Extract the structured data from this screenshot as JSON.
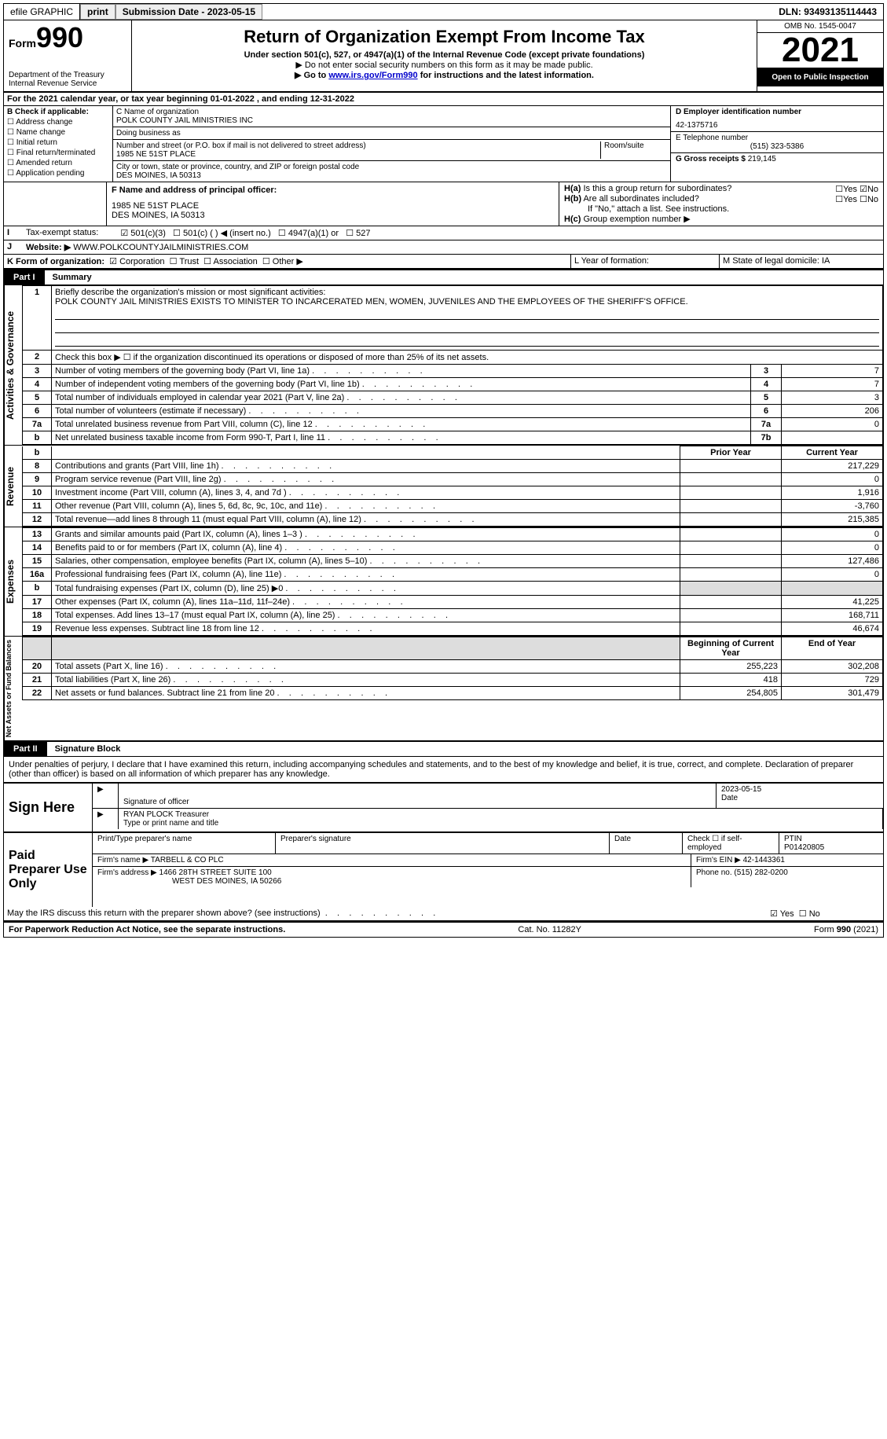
{
  "topbar": {
    "efile": "efile GRAPHIC",
    "print": "print",
    "submission_label": "Submission Date - 2023-05-15",
    "dln": "DLN: 93493135114443"
  },
  "header": {
    "form_label": "Form",
    "form_number": "990",
    "dept": "Department of the Treasury",
    "irs": "Internal Revenue Service",
    "title": "Return of Organization Exempt From Income Tax",
    "sub1": "Under section 501(c), 527, or 4947(a)(1) of the Internal Revenue Code (except private foundations)",
    "sub2": "▶ Do not enter social security numbers on this form as it may be made public.",
    "sub3_pre": "▶ Go to ",
    "sub3_link": "www.irs.gov/Form990",
    "sub3_post": " for instructions and the latest information.",
    "omb": "OMB No. 1545-0047",
    "year": "2021",
    "open": "Open to Public Inspection"
  },
  "lineA": "For the 2021 calendar year, or tax year beginning 01-01-2022   , and ending 12-31-2022",
  "sectionB": {
    "label": "B Check if applicable:",
    "opts": [
      "Address change",
      "Name change",
      "Initial return",
      "Final return/terminated",
      "Amended return",
      "Application pending"
    ]
  },
  "sectionC": {
    "name_label": "C Name of organization",
    "name": "POLK COUNTY JAIL MINISTRIES INC",
    "dba_label": "Doing business as",
    "dba": "",
    "street_label": "Number and street (or P.O. box if mail is not delivered to street address)",
    "room_label": "Room/suite",
    "street": "1985 NE 51ST PLACE",
    "city_label": "City or town, state or province, country, and ZIP or foreign postal code",
    "city": "DES MOINES, IA  50313"
  },
  "sectionD": {
    "label": "D Employer identification number",
    "value": "42-1375716"
  },
  "sectionE": {
    "label": "E Telephone number",
    "value": "(515) 323-5386"
  },
  "sectionG": {
    "label": "G Gross receipts $",
    "value": "219,145"
  },
  "sectionF": {
    "label": "F Name and address of principal officer:",
    "name": "",
    "addr1": "1985 NE 51ST PLACE",
    "addr2": "DES MOINES, IA  50313"
  },
  "sectionH": {
    "a": "Is this a group return for subordinates?",
    "b": "Are all subordinates included?",
    "b_note": "If \"No,\" attach a list. See instructions.",
    "c": "Group exemption number ▶",
    "yes": "Yes",
    "no": "No"
  },
  "sectionI": {
    "label": "Tax-exempt status:",
    "opts": [
      "501(c)(3)",
      "501(c) (  ) ◀ (insert no.)",
      "4947(a)(1) or",
      "527"
    ]
  },
  "sectionJ": {
    "label": "Website: ▶",
    "value": "WWW.POLKCOUNTYJAILMINISTRIES.COM"
  },
  "sectionK": {
    "label": "K Form of organization:",
    "opts": [
      "Corporation",
      "Trust",
      "Association",
      "Other ▶"
    ]
  },
  "sectionL": "L Year of formation:",
  "sectionM": "M State of legal domicile: IA",
  "part1": {
    "label": "Part I",
    "title": "Summary"
  },
  "summary": {
    "line1_label": "Briefly describe the organization's mission or most significant activities:",
    "line1_text": "POLK COUNTY JAIL MINISTRIES EXISTS TO MINISTER TO INCARCERATED MEN, WOMEN, JUVENILES AND THE EMPLOYEES OF THE SHERIFF'S OFFICE.",
    "line2": "Check this box ▶ ☐ if the organization discontinued its operations or disposed of more than 25% of its net assets.",
    "rows_governance": [
      {
        "n": "3",
        "t": "Number of voting members of the governing body (Part VI, line 1a)",
        "box": "3",
        "v": "7"
      },
      {
        "n": "4",
        "t": "Number of independent voting members of the governing body (Part VI, line 1b)",
        "box": "4",
        "v": "7"
      },
      {
        "n": "5",
        "t": "Total number of individuals employed in calendar year 2021 (Part V, line 2a)",
        "box": "5",
        "v": "3"
      },
      {
        "n": "6",
        "t": "Total number of volunteers (estimate if necessary)",
        "box": "6",
        "v": "206"
      },
      {
        "n": "7a",
        "t": "Total unrelated business revenue from Part VIII, column (C), line 12",
        "box": "7a",
        "v": "0"
      },
      {
        "n": "b",
        "t": "Net unrelated business taxable income from Form 990-T, Part I, line 11",
        "box": "7b",
        "v": ""
      }
    ],
    "prior_year": "Prior Year",
    "current_year": "Current Year",
    "revenue_rows": [
      {
        "n": "8",
        "t": "Contributions and grants (Part VIII, line 1h)",
        "p": "",
        "c": "217,229"
      },
      {
        "n": "9",
        "t": "Program service revenue (Part VIII, line 2g)",
        "p": "",
        "c": "0"
      },
      {
        "n": "10",
        "t": "Investment income (Part VIII, column (A), lines 3, 4, and 7d )",
        "p": "",
        "c": "1,916"
      },
      {
        "n": "11",
        "t": "Other revenue (Part VIII, column (A), lines 5, 6d, 8c, 9c, 10c, and 11e)",
        "p": "",
        "c": "-3,760"
      },
      {
        "n": "12",
        "t": "Total revenue—add lines 8 through 11 (must equal Part VIII, column (A), line 12)",
        "p": "",
        "c": "215,385"
      }
    ],
    "expense_rows": [
      {
        "n": "13",
        "t": "Grants and similar amounts paid (Part IX, column (A), lines 1–3 )",
        "p": "",
        "c": "0"
      },
      {
        "n": "14",
        "t": "Benefits paid to or for members (Part IX, column (A), line 4)",
        "p": "",
        "c": "0"
      },
      {
        "n": "15",
        "t": "Salaries, other compensation, employee benefits (Part IX, column (A), lines 5–10)",
        "p": "",
        "c": "127,486"
      },
      {
        "n": "16a",
        "t": "Professional fundraising fees (Part IX, column (A), line 11e)",
        "p": "",
        "c": "0"
      },
      {
        "n": "b",
        "t": "Total fundraising expenses (Part IX, column (D), line 25) ▶0",
        "p": "grey",
        "c": "grey"
      },
      {
        "n": "17",
        "t": "Other expenses (Part IX, column (A), lines 11a–11d, 11f–24e)",
        "p": "",
        "c": "41,225"
      },
      {
        "n": "18",
        "t": "Total expenses. Add lines 13–17 (must equal Part IX, column (A), line 25)",
        "p": "",
        "c": "168,711"
      },
      {
        "n": "19",
        "t": "Revenue less expenses. Subtract line 18 from line 12",
        "p": "",
        "c": "46,674"
      }
    ],
    "begin_year": "Beginning of Current Year",
    "end_year": "End of Year",
    "net_rows": [
      {
        "n": "20",
        "t": "Total assets (Part X, line 16)",
        "p": "255,223",
        "c": "302,208"
      },
      {
        "n": "21",
        "t": "Total liabilities (Part X, line 26)",
        "p": "418",
        "c": "729"
      },
      {
        "n": "22",
        "t": "Net assets or fund balances. Subtract line 21 from line 20",
        "p": "254,805",
        "c": "301,479"
      }
    ]
  },
  "part2": {
    "label": "Part II",
    "title": "Signature Block",
    "declaration": "Under penalties of perjury, I declare that I have examined this return, including accompanying schedules and statements, and to the best of my knowledge and belief, it is true, correct, and complete. Declaration of preparer (other than officer) is based on all information of which preparer has any knowledge."
  },
  "sign": {
    "here": "Sign Here",
    "sig_label": "Signature of officer",
    "date_label": "Date",
    "date": "2023-05-15",
    "name": "RYAN PLOCK  Treasurer",
    "name_label": "Type or print name and title"
  },
  "preparer": {
    "label": "Paid Preparer Use Only",
    "print_label": "Print/Type preparer's name",
    "sig_label": "Preparer's signature",
    "date_label": "Date",
    "check_label": "Check ☐ if self-employed",
    "ptin_label": "PTIN",
    "ptin": "P01420805",
    "firm_name_label": "Firm's name    ▶",
    "firm_name": "TARBELL & CO PLC",
    "firm_ein_label": "Firm's EIN ▶",
    "firm_ein": "42-1443361",
    "firm_addr_label": "Firm's address ▶",
    "firm_addr1": "1466 28TH STREET SUITE 100",
    "firm_addr2": "WEST DES MOINES, IA  50266",
    "phone_label": "Phone no.",
    "phone": "(515) 282-0200"
  },
  "discuss": "May the IRS discuss this return with the preparer shown above? (see instructions)",
  "footer": {
    "left": "For Paperwork Reduction Act Notice, see the separate instructions.",
    "mid": "Cat. No. 11282Y",
    "right": "Form 990 (2021)"
  },
  "labels": {
    "activities": "Activities & Governance",
    "revenue": "Revenue",
    "expenses": "Expenses",
    "net": "Net Assets or Fund Balances"
  }
}
